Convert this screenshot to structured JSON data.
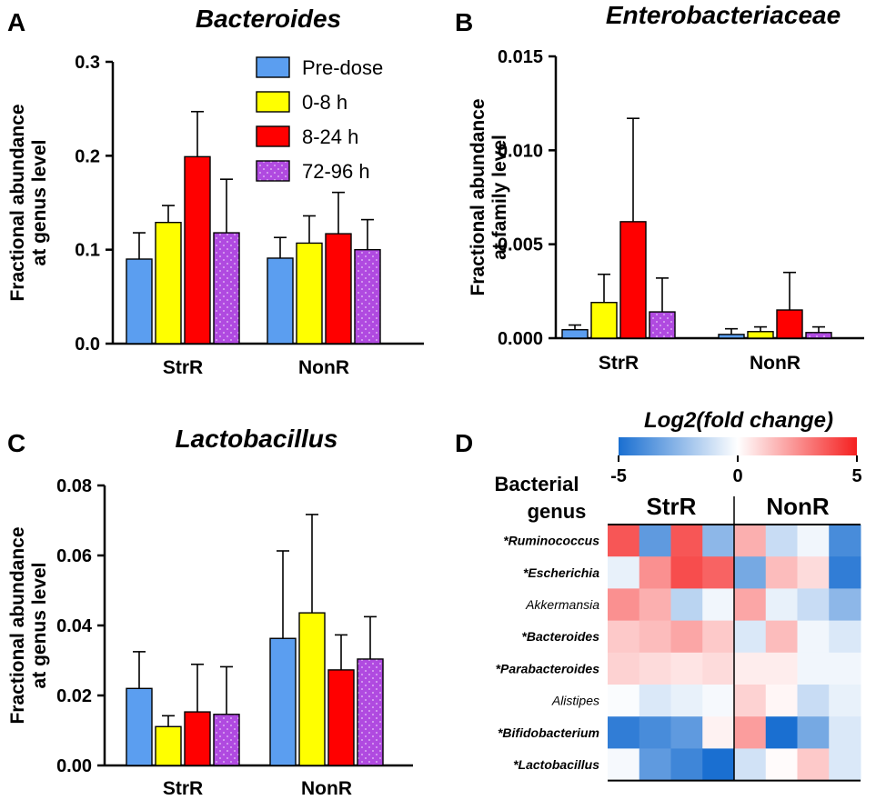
{
  "colors": {
    "predose": "#5b9ef0",
    "h0_8": "#ffff00",
    "h8_24": "#ff0000",
    "h72_96": "#b04ae0",
    "heat_low": "#1a6fd1",
    "heat_mid": "#ffffff",
    "heat_high": "#f52020"
  },
  "legend": [
    "Pre-dose",
    "0-8 h",
    "8-24 h",
    "72-96 h"
  ],
  "chart_data": [
    {
      "panel": "A",
      "type": "bar",
      "title": "Bacteroides",
      "ylabel": [
        "Fractional abundance",
        "at genus level"
      ],
      "categories": [
        "StrR",
        "NonR"
      ],
      "yticks": [
        "0.0",
        "0.1",
        "0.2",
        "0.3"
      ],
      "ylim": [
        0,
        0.3
      ],
      "series": [
        {
          "name": "Pre-dose",
          "values": [
            0.09,
            0.091
          ],
          "errors": [
            0.028,
            0.022
          ]
        },
        {
          "name": "0-8 h",
          "values": [
            0.129,
            0.107
          ],
          "errors": [
            0.018,
            0.029
          ]
        },
        {
          "name": "8-24 h",
          "values": [
            0.199,
            0.117
          ],
          "errors": [
            0.048,
            0.044
          ]
        },
        {
          "name": "72-96 h",
          "values": [
            0.118,
            0.1
          ],
          "errors": [
            0.057,
            0.032
          ]
        }
      ]
    },
    {
      "panel": "B",
      "type": "bar",
      "title": "Enterobacteriaceae",
      "ylabel": [
        "Fractional abundance",
        "at family level"
      ],
      "categories": [
        "StrR",
        "NonR"
      ],
      "yticks": [
        "0.000",
        "0.005",
        "0.010",
        "0.015"
      ],
      "ylim": [
        0,
        0.015
      ],
      "series": [
        {
          "name": "Pre-dose",
          "values": [
            0.00045,
            0.0002
          ],
          "errors": [
            0.00025,
            0.0003
          ]
        },
        {
          "name": "0-8 h",
          "values": [
            0.0019,
            0.00035
          ],
          "errors": [
            0.0015,
            0.00025
          ]
        },
        {
          "name": "8-24 h",
          "values": [
            0.0062,
            0.0015
          ],
          "errors": [
            0.0055,
            0.002
          ]
        },
        {
          "name": "72-96 h",
          "values": [
            0.0014,
            0.0003
          ],
          "errors": [
            0.0018,
            0.0003
          ]
        }
      ]
    },
    {
      "panel": "C",
      "type": "bar",
      "title": "Lactobacillus",
      "ylabel": [
        "Fractional abundance",
        "at genus level"
      ],
      "categories": [
        "StrR",
        "NonR"
      ],
      "yticks": [
        "0.00",
        "0.02",
        "0.04",
        "0.06",
        "0.08"
      ],
      "ylim": [
        0,
        0.08
      ],
      "series": [
        {
          "name": "Pre-dose",
          "values": [
            0.022,
            0.0363
          ],
          "errors": [
            0.0105,
            0.025
          ]
        },
        {
          "name": "0-8 h",
          "values": [
            0.0111,
            0.0436
          ],
          "errors": [
            0.0031,
            0.0281
          ]
        },
        {
          "name": "8-24 h",
          "values": [
            0.0153,
            0.0273
          ],
          "errors": [
            0.0136,
            0.01
          ]
        },
        {
          "name": "72-96 h",
          "values": [
            0.0146,
            0.0304
          ],
          "errors": [
            0.0136,
            0.0121
          ]
        }
      ]
    },
    {
      "panel": "D",
      "type": "heatmap",
      "colorbar_title": "Log2(fold change)",
      "colorbar_ticks": [
        "-5",
        "0",
        "5"
      ],
      "range": [
        -5,
        5
      ],
      "row_header": [
        "Bacterial",
        "genus"
      ],
      "groups": [
        "StrR",
        "NonR"
      ],
      "rows": [
        "*Ruminococcus",
        "*Escherichia",
        "Akkermansia",
        "*Bacteroides",
        "*Parabacteroides",
        "Alistipes",
        "*Bifidobacterium",
        "*Lactobacillus"
      ],
      "row_bold": [
        true,
        true,
        false,
        true,
        true,
        false,
        true,
        true
      ],
      "values": [
        [
          3.8,
          -3.5,
          3.8,
          -2.5,
          1.8,
          -1.2,
          -0.3,
          -4.0
        ],
        [
          -0.5,
          2.5,
          4.0,
          3.5,
          -3.0,
          1.5,
          0.8,
          -4.5
        ],
        [
          2.5,
          1.8,
          -1.5,
          -0.3,
          2.0,
          -0.5,
          -1.2,
          -2.5
        ],
        [
          1.2,
          1.5,
          2.0,
          1.2,
          -0.8,
          1.5,
          -0.3,
          -0.8
        ],
        [
          1.0,
          0.8,
          0.6,
          0.8,
          0.4,
          0.4,
          -0.3,
          -0.3
        ],
        [
          -0.1,
          -0.8,
          -0.5,
          -0.2,
          1.0,
          0.2,
          -1.2,
          -0.5
        ],
        [
          -4.5,
          -4.0,
          -3.5,
          0.3,
          2.2,
          -5.0,
          -3.0,
          -0.8
        ],
        [
          -0.2,
          -3.5,
          -4.2,
          -5.0,
          -1.0,
          0.1,
          1.2,
          -0.8
        ]
      ]
    }
  ],
  "panel_letters": [
    "A",
    "B",
    "C",
    "D"
  ]
}
